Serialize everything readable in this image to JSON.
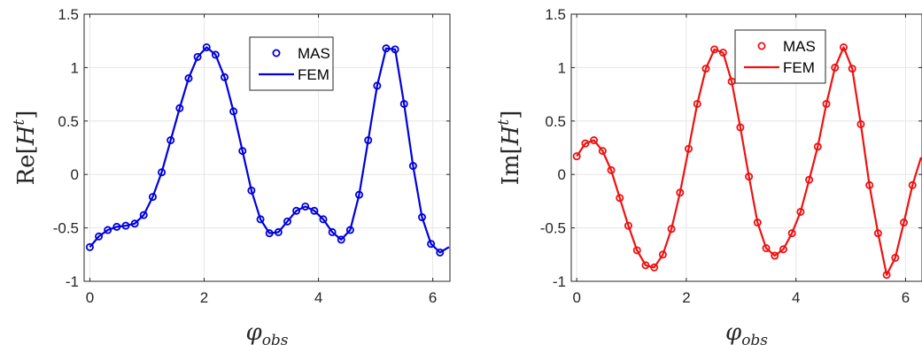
{
  "chart_data": [
    {
      "type": "line",
      "ylabel_main": "Re",
      "ylabel_var": "H",
      "ylabel_sup": "t",
      "xlabel_main": "φ",
      "xlabel_sub": "obs",
      "xlim": [
        -0.1,
        6.3
      ],
      "ylim": [
        -1,
        1.5
      ],
      "xticks": [
        0,
        2,
        4,
        6
      ],
      "xtick_labels": [
        "0",
        "2",
        "4",
        "6"
      ],
      "yticks": [
        -1,
        -0.5,
        0,
        0.5,
        1,
        1.5
      ],
      "ytick_labels": [
        "-1",
        "-0.5",
        "0",
        "0.5",
        "1",
        "1.5"
      ],
      "grid": true,
      "legend_position": "top-right",
      "color": "#0000dd",
      "series": [
        {
          "name": "MAS",
          "style": "markers",
          "x": [
            0,
            0.157,
            0.314,
            0.471,
            0.628,
            0.785,
            0.942,
            1.1,
            1.257,
            1.414,
            1.571,
            1.728,
            1.885,
            2.042,
            2.199,
            2.356,
            2.513,
            2.67,
            2.827,
            2.985,
            3.142,
            3.299,
            3.456,
            3.613,
            3.77,
            3.927,
            4.084,
            4.241,
            4.398,
            4.555,
            4.712,
            4.87,
            5.027,
            5.184,
            5.341,
            5.498,
            5.655,
            5.812,
            5.969,
            6.126
          ],
          "y": [
            -0.68,
            -0.58,
            -0.52,
            -0.49,
            -0.48,
            -0.46,
            -0.38,
            -0.21,
            0.02,
            0.32,
            0.62,
            0.9,
            1.1,
            1.19,
            1.12,
            0.91,
            0.59,
            0.22,
            -0.15,
            -0.42,
            -0.55,
            -0.54,
            -0.44,
            -0.34,
            -0.3,
            -0.34,
            -0.42,
            -0.54,
            -0.61,
            -0.52,
            -0.19,
            0.32,
            0.83,
            1.18,
            1.17,
            0.66,
            0.08,
            -0.4,
            -0.65,
            -0.73
          ]
        },
        {
          "name": "FEM",
          "style": "line",
          "x": [
            0,
            0.157,
            0.314,
            0.471,
            0.628,
            0.785,
            0.942,
            1.1,
            1.257,
            1.414,
            1.571,
            1.728,
            1.885,
            2.042,
            2.199,
            2.356,
            2.513,
            2.67,
            2.827,
            2.985,
            3.142,
            3.299,
            3.456,
            3.613,
            3.77,
            3.927,
            4.084,
            4.241,
            4.398,
            4.555,
            4.712,
            4.87,
            5.027,
            5.184,
            5.341,
            5.498,
            5.655,
            5.812,
            5.969,
            6.126,
            6.283
          ],
          "y": [
            -0.68,
            -0.58,
            -0.52,
            -0.49,
            -0.48,
            -0.46,
            -0.38,
            -0.21,
            0.02,
            0.32,
            0.62,
            0.9,
            1.1,
            1.19,
            1.12,
            0.91,
            0.59,
            0.22,
            -0.15,
            -0.42,
            -0.55,
            -0.54,
            -0.44,
            -0.34,
            -0.3,
            -0.34,
            -0.42,
            -0.54,
            -0.61,
            -0.52,
            -0.19,
            0.32,
            0.83,
            1.18,
            1.17,
            0.66,
            0.08,
            -0.4,
            -0.65,
            -0.73,
            -0.68
          ]
        }
      ]
    },
    {
      "type": "line",
      "ylabel_main": "Im",
      "ylabel_var": "H",
      "ylabel_sup": "t",
      "xlabel_main": "φ",
      "xlabel_sub": "obs",
      "xlim": [
        -0.1,
        6.3
      ],
      "ylim": [
        -1,
        1.5
      ],
      "xticks": [
        0,
        2,
        4,
        6
      ],
      "xtick_labels": [
        "0",
        "2",
        "4",
        "6"
      ],
      "yticks": [
        -1,
        -0.5,
        0,
        0.5,
        1,
        1.5
      ],
      "ytick_labels": [
        "-1",
        "-0.5",
        "0",
        "0.5",
        "1",
        "1.5"
      ],
      "grid": true,
      "legend_position": "top-center",
      "color": "#ee1111",
      "series": [
        {
          "name": "MAS",
          "style": "markers",
          "x": [
            0,
            0.157,
            0.314,
            0.471,
            0.628,
            0.785,
            0.942,
            1.1,
            1.257,
            1.414,
            1.571,
            1.728,
            1.885,
            2.042,
            2.199,
            2.356,
            2.513,
            2.67,
            2.827,
            2.985,
            3.142,
            3.299,
            3.456,
            3.613,
            3.77,
            3.927,
            4.084,
            4.241,
            4.398,
            4.555,
            4.712,
            4.87,
            5.027,
            5.184,
            5.341,
            5.498,
            5.655,
            5.812,
            5.969,
            6.126
          ],
          "y": [
            0.17,
            0.29,
            0.32,
            0.22,
            0.04,
            -0.22,
            -0.48,
            -0.71,
            -0.85,
            -0.87,
            -0.75,
            -0.51,
            -0.17,
            0.24,
            0.66,
            0.99,
            1.17,
            1.14,
            0.87,
            0.44,
            -0.02,
            -0.45,
            -0.69,
            -0.76,
            -0.7,
            -0.55,
            -0.35,
            -0.05,
            0.26,
            0.66,
            1.0,
            1.19,
            0.99,
            0.47,
            -0.1,
            -0.55,
            -0.94,
            -0.78,
            -0.45,
            -0.1
          ]
        },
        {
          "name": "FEM",
          "style": "line",
          "x": [
            0,
            0.157,
            0.314,
            0.471,
            0.628,
            0.785,
            0.942,
            1.1,
            1.257,
            1.414,
            1.571,
            1.728,
            1.885,
            2.042,
            2.199,
            2.356,
            2.513,
            2.67,
            2.827,
            2.985,
            3.142,
            3.299,
            3.456,
            3.613,
            3.77,
            3.927,
            4.084,
            4.241,
            4.398,
            4.555,
            4.712,
            4.87,
            5.027,
            5.184,
            5.341,
            5.498,
            5.655,
            5.812,
            5.969,
            6.126,
            6.283
          ],
          "y": [
            0.17,
            0.29,
            0.32,
            0.22,
            0.04,
            -0.22,
            -0.48,
            -0.71,
            -0.85,
            -0.87,
            -0.75,
            -0.51,
            -0.17,
            0.24,
            0.66,
            0.99,
            1.17,
            1.14,
            0.87,
            0.44,
            -0.02,
            -0.45,
            -0.69,
            -0.76,
            -0.7,
            -0.55,
            -0.35,
            -0.05,
            0.26,
            0.66,
            1.0,
            1.19,
            0.99,
            0.47,
            -0.1,
            -0.55,
            -0.94,
            -0.78,
            -0.45,
            -0.1,
            0.16
          ]
        }
      ]
    }
  ]
}
